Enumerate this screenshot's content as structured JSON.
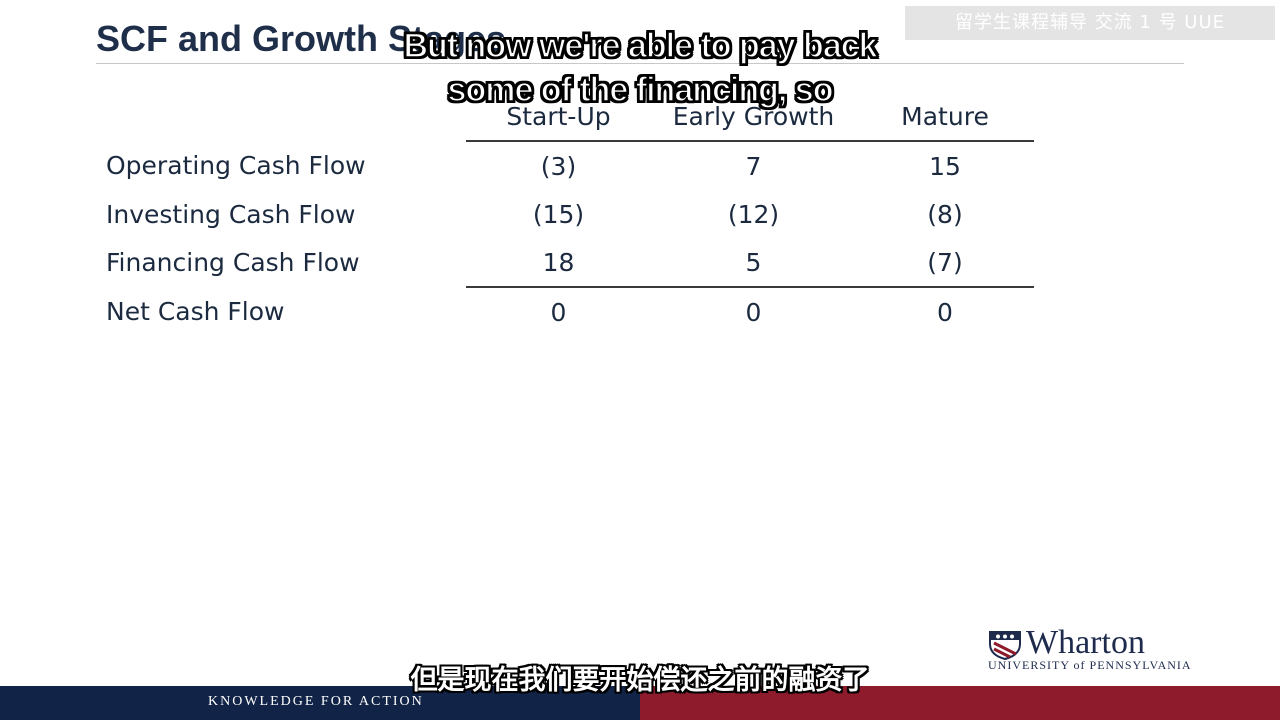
{
  "slide": {
    "title": "SCF and Growth Stages"
  },
  "watermark": {
    "text": "留学生课程辅导 交流 1 号 UUE"
  },
  "subtitles": {
    "english_line1": "But now we're able to pay back",
    "english_line2": "some of the financing, so",
    "chinese": "但是现在我们要开始偿还之前的融资了"
  },
  "table": {
    "columns": [
      "Start-Up",
      "Early Growth",
      "Mature"
    ],
    "rows": [
      {
        "label": "Operating Cash Flow",
        "values": [
          "(3)",
          "7",
          "15"
        ]
      },
      {
        "label": "Investing Cash Flow",
        "values": [
          "(15)",
          "(12)",
          "(8)"
        ]
      },
      {
        "label": "Financing Cash Flow",
        "values": [
          "18",
          "5",
          "(7)"
        ]
      },
      {
        "label": "Net Cash Flow",
        "values": [
          "0",
          "0",
          "0"
        ]
      }
    ]
  },
  "logo": {
    "name": "Wharton",
    "subtitle": "UNIVERSITY of PENNSYLVANIA"
  },
  "footer": {
    "tagline": "KNOWLEDGE FOR ACTION"
  },
  "colors": {
    "navy": "#112347",
    "crimson": "#8e1b2c",
    "title": "#1f2f4a"
  }
}
